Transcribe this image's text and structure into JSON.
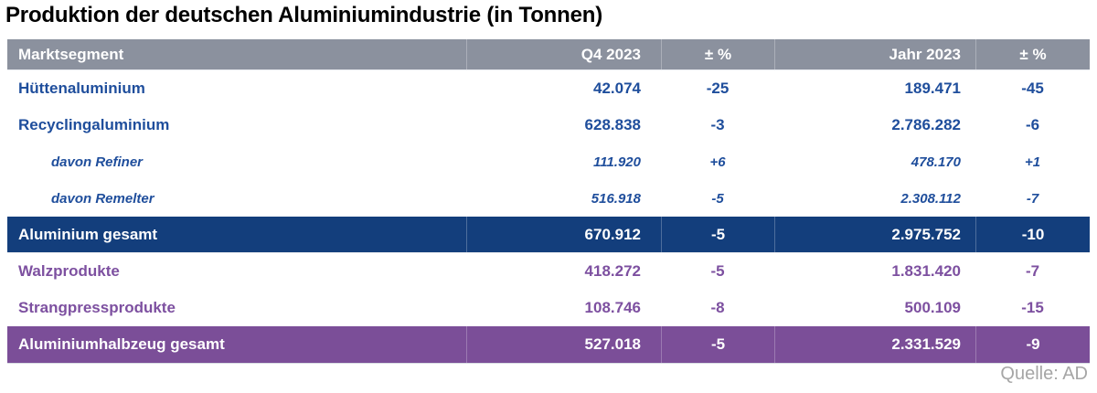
{
  "title": "Produktion der deutschen Aluminiumindustrie (in Tonnen)",
  "source": "Quelle: AD",
  "colors": {
    "header_bg": "#8b919e",
    "blue_text": "#1f4e9c",
    "blue_total_bg": "#133e7c",
    "purple_text": "#7d50a0",
    "purple_total_bg": "#7b4e98",
    "source_text": "#a6a6a6"
  },
  "table": {
    "columns": [
      "Marktsegment",
      "Q4 2023",
      "± %",
      "Jahr 2023",
      "± %"
    ],
    "rows": [
      {
        "label": "Hüttenaluminium",
        "q4": "42.074",
        "q4_pct": "-25",
        "year": "189.471",
        "year_pct": "-45"
      },
      {
        "label": "Recyclingaluminium",
        "q4": "628.838",
        "q4_pct": "-3",
        "year": "2.786.282",
        "year_pct": "-6"
      },
      {
        "label": "davon Refiner",
        "q4": "111.920",
        "q4_pct": "+6",
        "year": "478.170",
        "year_pct": "+1"
      },
      {
        "label": "davon Remelter",
        "q4": "516.918",
        "q4_pct": "-5",
        "year": "2.308.112",
        "year_pct": "-7"
      },
      {
        "label": "Aluminium gesamt",
        "q4": "670.912",
        "q4_pct": "-5",
        "year": "2.975.752",
        "year_pct": "-10"
      },
      {
        "label": "Walzprodukte",
        "q4": "418.272",
        "q4_pct": "-5",
        "year": "1.831.420",
        "year_pct": "-7"
      },
      {
        "label": "Strangpressprodukte",
        "q4": "108.746",
        "q4_pct": "-8",
        "year": "500.109",
        "year_pct": "-15"
      },
      {
        "label": "Aluminiumhalbzeug gesamt",
        "q4": "527.018",
        "q4_pct": "-5",
        "year": "2.331.529",
        "year_pct": "-9"
      }
    ]
  },
  "chart_data": {
    "type": "table",
    "title": "Produktion der deutschen Aluminiumindustrie (in Tonnen)",
    "columns": [
      "Marktsegment",
      "Q4 2023",
      "± %",
      "Jahr 2023",
      "± %"
    ],
    "rows": [
      [
        "Hüttenaluminium",
        42074,
        -25,
        189471,
        -45
      ],
      [
        "Recyclingaluminium",
        628838,
        -3,
        2786282,
        -6
      ],
      [
        "davon Refiner",
        111920,
        6,
        478170,
        1
      ],
      [
        "davon Remelter",
        516918,
        -5,
        2308112,
        -7
      ],
      [
        "Aluminium gesamt",
        670912,
        -5,
        2975752,
        -10
      ],
      [
        "Walzprodukte",
        418272,
        -5,
        1831420,
        -7
      ],
      [
        "Strangpressprodukte",
        108746,
        -8,
        500109,
        -15
      ],
      [
        "Aluminiumhalbzeug gesamt",
        527018,
        -5,
        2331529,
        -9
      ]
    ],
    "source": "Quelle: AD",
    "layout_hints": {
      "highlight_rows": [
        "Aluminium gesamt",
        "Aluminiumhalbzeug gesamt"
      ],
      "italic_sub_rows": [
        "davon Refiner",
        "davon Remelter"
      ],
      "number_format": "de-DE thousands separator '.'"
    }
  }
}
